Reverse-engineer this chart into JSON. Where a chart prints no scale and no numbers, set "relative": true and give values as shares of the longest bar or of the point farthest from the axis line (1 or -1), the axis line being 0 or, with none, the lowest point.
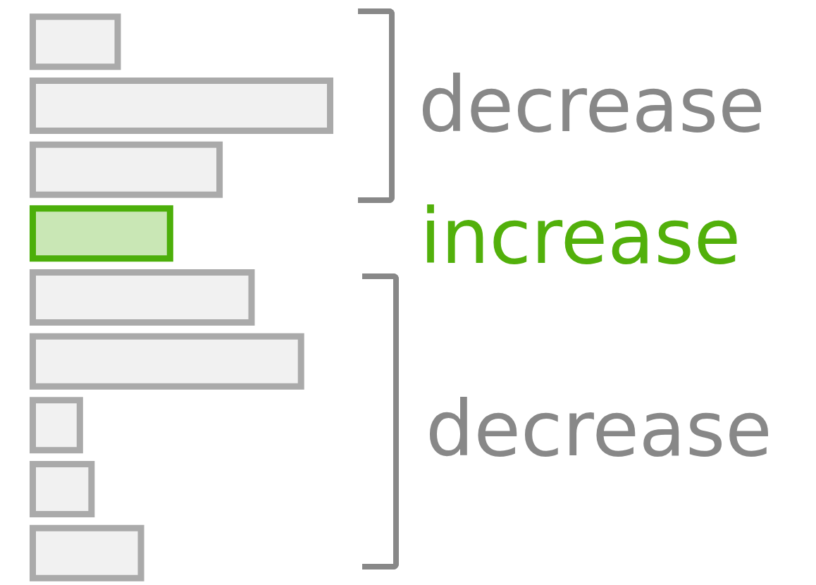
{
  "chart_data": {
    "type": "bar",
    "orientation": "horizontal",
    "relative": true,
    "categories": [
      null,
      null,
      null,
      null,
      null,
      null,
      null,
      null,
      null
    ],
    "values": [
      0.27,
      1,
      0.62,
      0.45,
      0.73,
      0.9,
      0.14,
      0.18,
      0.35
    ],
    "colors": [
      "#aaaaaa",
      "#aaaaaa",
      "#aaaaaa",
      "#4caf0a",
      "#aaaaaa",
      "#aaaaaa",
      "#aaaaaa",
      "#aaaaaa",
      "#aaaaaa"
    ],
    "annotations": [
      "decrease",
      "increase",
      "decrease"
    ]
  }
}
